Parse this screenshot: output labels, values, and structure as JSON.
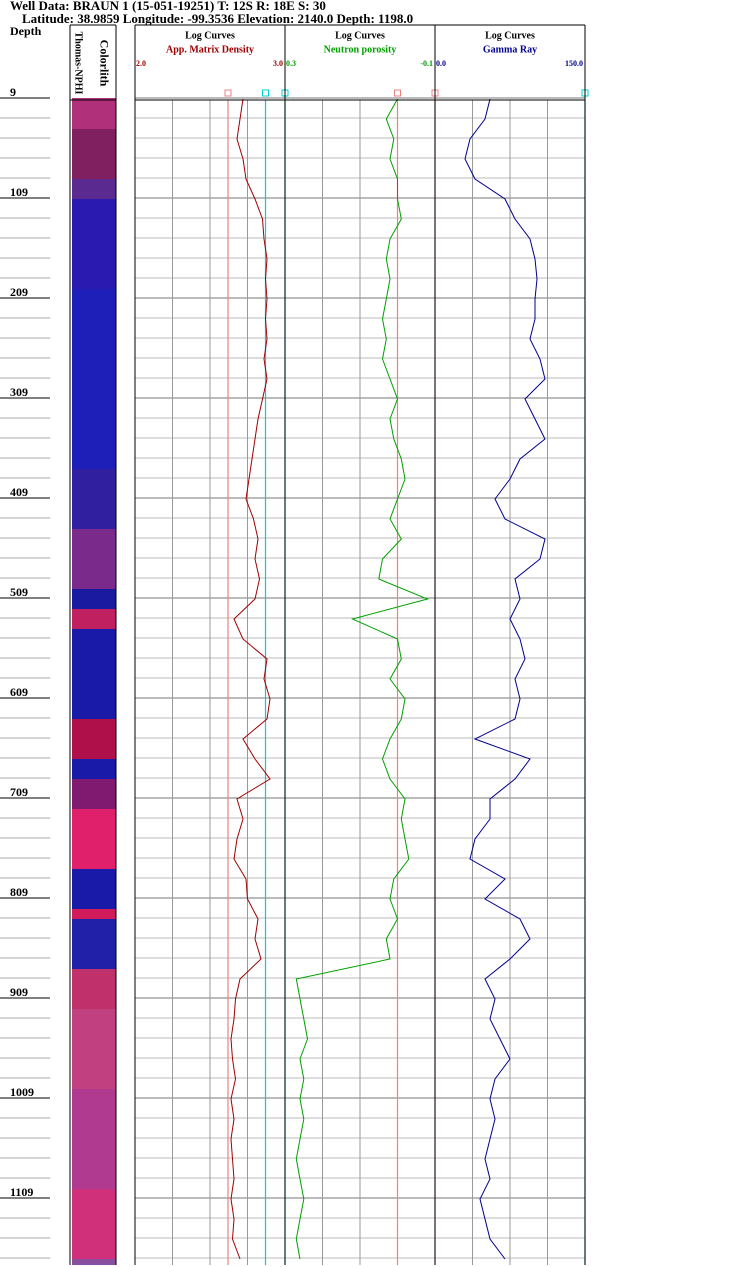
{
  "header": {
    "line1": "Well Data: BRAUN 1 (15-051-19251) T: 12S R: 18E S: 30",
    "line2": "Latitude: 38.9859 Longitude: -99.3536 Elevation: 2140.0 Depth: 1198.0"
  },
  "chart_data": {
    "type": "well-log",
    "depth_label": "Depth",
    "ylim": [
      9,
      1176
    ],
    "yticks": [
      9,
      109,
      209,
      309,
      409,
      509,
      609,
      709,
      809,
      909,
      1009,
      1109
    ],
    "minor_gridlines": [
      29,
      49,
      69,
      89,
      129,
      149,
      169,
      189,
      229,
      249,
      269,
      289,
      329,
      349,
      369,
      389,
      429,
      449,
      469,
      489,
      529,
      549,
      569,
      589,
      629,
      649,
      669,
      689,
      729,
      749,
      769,
      789,
      829,
      849,
      869,
      889,
      929,
      949,
      969,
      989,
      1029,
      1049,
      1069,
      1089,
      1129,
      1149,
      1169
    ],
    "depths": [
      10,
      30,
      50,
      70,
      90,
      110,
      130,
      150,
      170,
      190,
      210,
      230,
      250,
      270,
      290,
      310,
      330,
      350,
      370,
      390,
      410,
      430,
      450,
      470,
      490,
      510,
      530,
      550,
      570,
      590,
      610,
      630,
      650,
      670,
      690,
      710,
      730,
      750,
      770,
      790,
      810,
      830,
      850,
      870,
      890,
      910,
      930,
      950,
      970,
      990,
      1010,
      1030,
      1050,
      1070,
      1090,
      1110,
      1130,
      1150,
      1170
    ],
    "colorlith": {
      "title": "Colorlith",
      "subtitle": "Thomas-NPHI",
      "tops": [
        9,
        40,
        90,
        110,
        200,
        380,
        440,
        500,
        520,
        540,
        630,
        670,
        690,
        720,
        780,
        820,
        830,
        880,
        920,
        1000,
        1100,
        1170
      ],
      "colors": [
        "#b0307a",
        "#802060",
        "#5a2a90",
        "#2a1ab0",
        "#1e1eb8",
        "#3020a0",
        "#7a2a8a",
        "#1a1aa0",
        "#c02060",
        "#1a1aa8",
        "#b0104a",
        "#1a1aa8",
        "#801a70",
        "#e0206a",
        "#1a1aa8",
        "#d01a5a",
        "#2020a8",
        "#c0306a",
        "#c04080",
        "#b03a90",
        "#d0307a",
        "#8a50a0"
      ]
    },
    "tracks": [
      {
        "title": "Log Curves",
        "xlim": [
          2,
          3
        ],
        "xticks": [
          {
            "value": 2,
            "label": "2.0"
          },
          {
            "value": 3,
            "label": "3.0"
          }
        ],
        "grid": [
          2.25,
          2.5,
          2.75
        ],
        "cutoffs": [
          {
            "value": 2.62,
            "color": "#f08080"
          },
          {
            "value": 2.87,
            "color": "#00d0d0"
          }
        ],
        "series": [
          {
            "name": "App. Matrix Density",
            "color": "#a00000",
            "values": [
              2.72,
              2.7,
              2.68,
              2.72,
              2.74,
              2.8,
              2.85,
              2.86,
              2.88,
              2.87,
              2.88,
              2.87,
              2.88,
              2.86,
              2.88,
              2.85,
              2.82,
              2.8,
              2.78,
              2.76,
              2.74,
              2.79,
              2.82,
              2.8,
              2.83,
              2.8,
              2.66,
              2.72,
              2.88,
              2.86,
              2.9,
              2.88,
              2.72,
              2.8,
              2.9,
              2.68,
              2.72,
              2.68,
              2.66,
              2.74,
              2.75,
              2.82,
              2.8,
              2.84,
              2.7,
              2.67,
              2.66,
              2.64,
              2.65,
              2.67,
              2.64,
              2.66,
              2.64,
              2.65,
              2.66,
              2.64,
              2.66,
              2.65,
              2.7
            ]
          }
        ]
      },
      {
        "title": "Log Curves",
        "xlim": [
          0.3,
          -0.1
        ],
        "xticks": [
          0.3,
          -0.1
        ],
        "grid": [
          0.2,
          0.1,
          0.0
        ],
        "cutoffs": [
          {
            "value": 0.0,
            "color": "#f08080"
          },
          {
            "value": 0.3,
            "color": "#00d0d0"
          }
        ],
        "series": [
          {
            "name": "Neutron porosity",
            "color": "#00a000",
            "values": [
              0.0,
              0.03,
              0.01,
              0.02,
              0.0,
              0.0,
              -0.01,
              0.02,
              0.03,
              0.02,
              0.03,
              0.04,
              0.03,
              0.04,
              0.02,
              0.0,
              0.02,
              0.01,
              -0.01,
              -0.02,
              0.0,
              0.02,
              -0.01,
              0.04,
              0.05,
              -0.08,
              0.12,
              0.0,
              -0.01,
              0.02,
              -0.02,
              -0.01,
              0.02,
              0.04,
              0.02,
              -0.02,
              -0.01,
              -0.02,
              -0.03,
              0.01,
              0.02,
              0.0,
              0.03,
              0.02,
              0.27,
              0.26,
              0.25,
              0.24,
              0.26,
              0.25,
              0.26,
              0.25,
              0.26,
              0.27,
              0.26,
              0.25,
              0.26,
              0.27,
              0.26
            ]
          }
        ]
      },
      {
        "title": "Log Curves",
        "xlim": [
          0,
          150
        ],
        "xticks": [
          {
            "value": 0,
            "label": "0.0"
          },
          {
            "value": 150,
            "label": "150.0"
          }
        ],
        "grid": [
          37.5,
          75,
          112.5
        ],
        "cutoffs": [
          {
            "value": 0,
            "color": "#f08080"
          },
          {
            "value": 150,
            "color": "#00d0d0"
          }
        ],
        "series": [
          {
            "name": "Gamma Ray",
            "color": "#000090",
            "values": [
              55,
              50,
              35,
              30,
              40,
              70,
              80,
              95,
              100,
              102,
              100,
              100,
              95,
              105,
              110,
              90,
              100,
              110,
              85,
              75,
              60,
              70,
              110,
              105,
              80,
              85,
              75,
              85,
              90,
              80,
              85,
              80,
              40,
              95,
              80,
              55,
              55,
              40,
              35,
              70,
              50,
              85,
              95,
              75,
              50,
              60,
              55,
              65,
              75,
              60,
              55,
              60,
              55,
              50,
              55,
              45,
              50,
              55,
              70
            ]
          }
        ]
      }
    ]
  }
}
